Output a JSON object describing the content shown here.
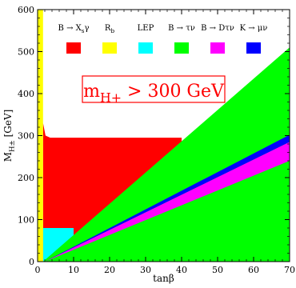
{
  "chart_data": {
    "type": "area",
    "title": "",
    "xlabel": "tanβ",
    "ylabel": "M_{H±} [GeV]",
    "xlim": [
      0,
      70
    ],
    "ylim": [
      0,
      600
    ],
    "x_ticks": [
      0,
      10,
      20,
      30,
      40,
      50,
      60,
      70
    ],
    "y_ticks": [
      0,
      100,
      200,
      300,
      400,
      500,
      600
    ],
    "grid": false,
    "legend_position": "top",
    "legend": [
      {
        "name": "B → X_sγ",
        "color": "#ff0000"
      },
      {
        "name": "R_b",
        "color": "#ffff00"
      },
      {
        "name": "LEP",
        "color": "#00ffff"
      },
      {
        "name": "B → τν",
        "color": "#00ff00"
      },
      {
        "name": "B → Dτν",
        "color": "#ff00ff"
      },
      {
        "name": "K → μν",
        "color": "#0000ff"
      }
    ],
    "annotation": "m_{H+} > 300 GeV",
    "annotation_color": "#ff0000",
    "regions": [
      {
        "name": "B → X_sγ",
        "color": "#ff0000",
        "points": [
          [
            1.5,
            0
          ],
          [
            1.5,
            330
          ],
          [
            2.2,
            300
          ],
          [
            3.5,
            295
          ],
          [
            40,
            295
          ],
          [
            40,
            0
          ]
        ]
      },
      {
        "name": "LEP",
        "color": "#00ffff",
        "points": [
          [
            1.5,
            0
          ],
          [
            1.5,
            80
          ],
          [
            10,
            80
          ],
          [
            10,
            0
          ]
        ]
      },
      {
        "name": "B → τν",
        "color": "#00ff00",
        "points": [
          [
            1.5,
            0
          ],
          [
            70,
            510
          ],
          [
            70,
            0
          ],
          [
            1.5,
            0
          ]
        ]
      },
      {
        "name": "B → Dτν",
        "color": "#ff00ff",
        "points": [
          [
            2,
            0
          ],
          [
            70,
            285
          ],
          [
            70,
            240
          ],
          [
            2,
            0
          ]
        ]
      },
      {
        "name": "K → μν",
        "color": "#0000ff",
        "points": [
          [
            2,
            0
          ],
          [
            70,
            302
          ],
          [
            70,
            285
          ],
          [
            2,
            0
          ]
        ]
      },
      {
        "name": "R_b",
        "color": "#ffff00",
        "points": [
          [
            0,
            0
          ],
          [
            0,
            600
          ],
          [
            1.5,
            600
          ],
          [
            1.5,
            0
          ]
        ]
      }
    ]
  }
}
